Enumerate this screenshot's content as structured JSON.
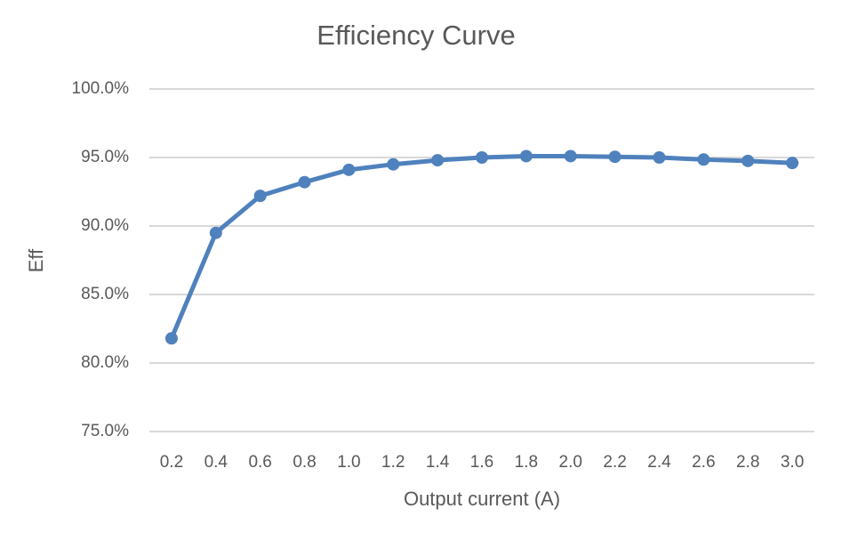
{
  "chart_data": {
    "type": "line",
    "title": "Efficiency Curve",
    "x_label": "Output current (A)",
    "y_label": "Eff",
    "categories": [
      "0.2",
      "0.4",
      "0.6",
      "0.8",
      "1.0",
      "1.2",
      "1.4",
      "1.6",
      "1.8",
      "2.0",
      "2.2",
      "2.4",
      "2.6",
      "2.8",
      "3.0"
    ],
    "series": [
      {
        "name": "Eff",
        "color": "#4f81bd",
        "values": [
          81.8,
          89.5,
          92.2,
          93.2,
          94.1,
          94.5,
          94.8,
          95.0,
          95.1,
          95.1,
          95.05,
          95.0,
          94.85,
          94.75,
          94.6
        ]
      }
    ],
    "ylim": [
      75,
      100
    ],
    "yticks": [
      {
        "value": 75,
        "label": "75.0%"
      },
      {
        "value": 80,
        "label": "80.0%"
      },
      {
        "value": 85,
        "label": "85.0%"
      },
      {
        "value": 90,
        "label": "90.0%"
      },
      {
        "value": 95,
        "label": "95.0%"
      },
      {
        "value": 100,
        "label": "100.0%"
      }
    ],
    "grid": true
  }
}
